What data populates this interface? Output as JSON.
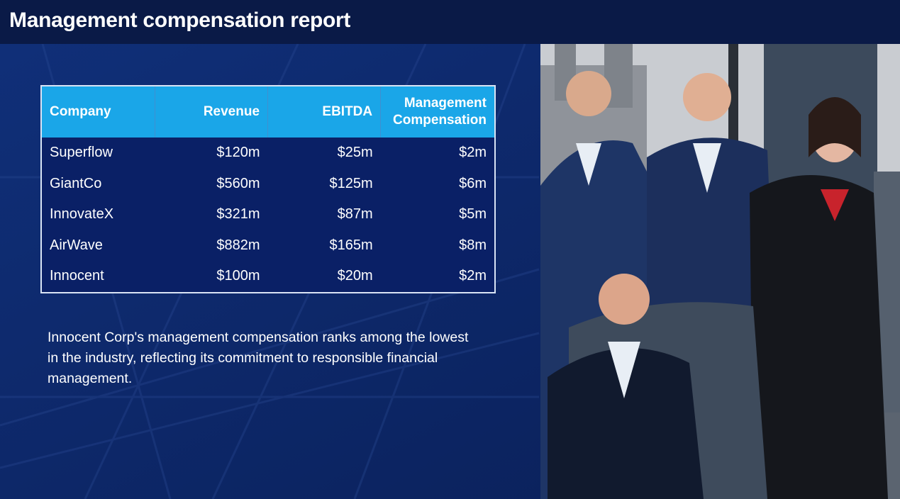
{
  "header": {
    "title": "Management compensation report"
  },
  "table": {
    "columns": [
      "Company",
      "Revenue",
      "EBITDA",
      "Management Compensation"
    ],
    "rows": [
      [
        "Superflow",
        "$120m",
        "$25m",
        "$2m"
      ],
      [
        "GiantCo",
        "$560m",
        "$125m",
        "$6m"
      ],
      [
        "InnovateX",
        "$321m",
        "$87m",
        "$5m"
      ],
      [
        "AirWave",
        "$882m",
        "$165m",
        "$8m"
      ],
      [
        "Innocent",
        "$100m",
        "$20m",
        "$2m"
      ]
    ]
  },
  "body": {
    "paragraph": "Innocent Corp's management compensation ranks among the lowest in the industry, reflecting its commitment to responsible financial management."
  }
}
